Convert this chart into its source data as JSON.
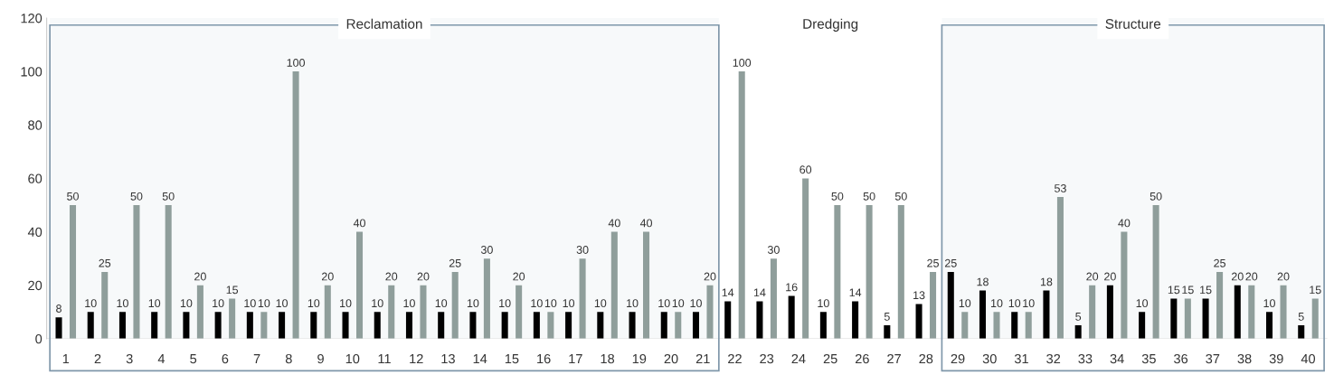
{
  "chart_data": {
    "type": "bar",
    "categories": [
      "1",
      "2",
      "3",
      "4",
      "5",
      "6",
      "7",
      "8",
      "9",
      "10",
      "11",
      "12",
      "13",
      "14",
      "15",
      "16",
      "17",
      "18",
      "19",
      "20",
      "21",
      "22",
      "23",
      "24",
      "25",
      "26",
      "27",
      "28",
      "29",
      "30",
      "31",
      "32",
      "33",
      "34",
      "35",
      "36",
      "37",
      "38",
      "39",
      "40"
    ],
    "series": [
      {
        "color": "#000000",
        "values": [
          8,
          10,
          10,
          10,
          10,
          10,
          10,
          10,
          10,
          10,
          10,
          10,
          10,
          10,
          10,
          10,
          10,
          10,
          10,
          10,
          10,
          14,
          14,
          16,
          10,
          14,
          5,
          13,
          25,
          18,
          10,
          18,
          5,
          20,
          10,
          15,
          15,
          20,
          10,
          5
        ]
      },
      {
        "color": "#8f9e9b",
        "values": [
          50,
          25,
          50,
          50,
          20,
          15,
          10,
          100,
          20,
          40,
          20,
          20,
          25,
          30,
          20,
          10,
          30,
          40,
          40,
          10,
          20,
          100,
          30,
          60,
          50,
          50,
          50,
          25,
          10,
          10,
          10,
          53,
          20,
          40,
          50,
          15,
          25,
          20,
          20,
          15
        ]
      }
    ],
    "ylim": [
      0,
      120
    ],
    "yticks": [
      0,
      20,
      40,
      60,
      80,
      100,
      120
    ],
    "data_labels": true,
    "annotations": [
      "Dredging"
    ],
    "grid": false,
    "legend": false,
    "bands": [
      {
        "axis": "x",
        "from": "1",
        "to": "21",
        "label": "Reclamation",
        "color": "#7f97aa"
      },
      {
        "axis": "x",
        "from": "29",
        "to": "40",
        "label": "Structure",
        "color": "#7f97aa"
      }
    ]
  }
}
